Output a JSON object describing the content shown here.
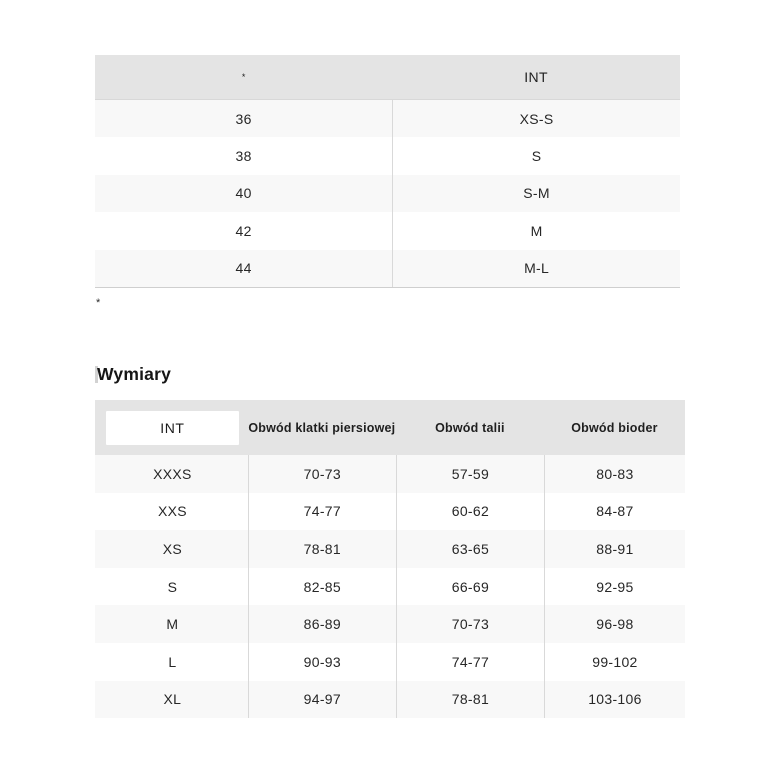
{
  "size_conversion_table": {
    "header": {
      "region_label": "*",
      "int_label": "INT"
    },
    "rows": [
      {
        "local": "36",
        "int": "XS-S"
      },
      {
        "local": "38",
        "int": "S"
      },
      {
        "local": "40",
        "int": "S-M"
      },
      {
        "local": "42",
        "int": "M"
      },
      {
        "local": "44",
        "int": "M-L"
      }
    ],
    "footnote_marker": "*"
  },
  "measurements_section": {
    "title": "Wymiary",
    "unit_selector": {
      "selected_label": "INT"
    },
    "column_headers": {
      "chest": "Obwód klatki piersiowej",
      "waist": "Obwód talii",
      "hips": "Obwód bioder"
    },
    "rows": [
      {
        "size": "XXXS",
        "chest": "70-73",
        "waist": "57-59",
        "hips": "80-83"
      },
      {
        "size": "XXS",
        "chest": "74-77",
        "waist": "60-62",
        "hips": "84-87"
      },
      {
        "size": "XS",
        "chest": "78-81",
        "waist": "63-65",
        "hips": "88-91"
      },
      {
        "size": "S",
        "chest": "82-85",
        "waist": "66-69",
        "hips": "92-95"
      },
      {
        "size": "M",
        "chest": "86-89",
        "waist": "70-73",
        "hips": "96-98"
      },
      {
        "size": "L",
        "chest": "90-93",
        "waist": "74-77",
        "hips": "99-102"
      },
      {
        "size": "XL",
        "chest": "94-97",
        "waist": "78-81",
        "hips": "103-106"
      }
    ]
  },
  "colors": {
    "header_background": "#e4e4e4",
    "alt_row_background": "#f8f8f8",
    "divider": "#d9d9d9",
    "text": "#272727",
    "unit_selector_background": "#ffffff"
  }
}
